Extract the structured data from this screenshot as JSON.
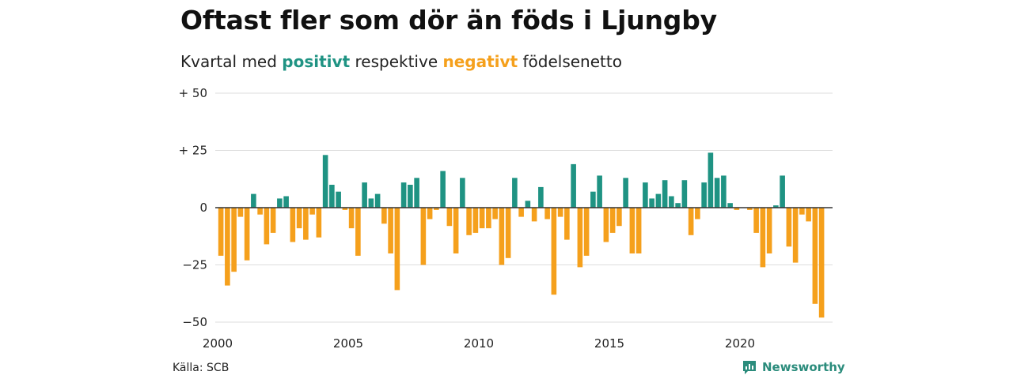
{
  "title": "Oftast fler som dör än föds i Ljungby",
  "subtitle": {
    "prefix": "Kvartal med",
    "positive_word": "positivt",
    "middle": "respektive",
    "negative_word": "negativt",
    "suffix": "födelsenetto"
  },
  "source": "Källa: SCB",
  "brand": "Newsworthy",
  "colors": {
    "positive": "#1f9383",
    "negative": "#f5a01c",
    "grid": "#dddddd",
    "axis": "#333333"
  },
  "chart_data": {
    "type": "bar",
    "start_year": 2000,
    "period": "quarter",
    "x_tick_labels": [
      "2000",
      "2005",
      "2010",
      "2015",
      "2020"
    ],
    "y_tick_labels": [
      "+ 50",
      "+ 25",
      "0",
      "−25",
      "−50"
    ],
    "y_ticks": [
      50,
      25,
      0,
      -25,
      -50
    ],
    "ylim": [
      -50,
      50
    ],
    "grid": true,
    "values": [
      -21,
      -34,
      -28,
      -4,
      -23,
      6,
      -3,
      -16,
      -11,
      4,
      5,
      -15,
      -9,
      -14,
      -3,
      -13,
      23,
      10,
      7,
      -1,
      -9,
      -21,
      11,
      4,
      6,
      -7,
      -20,
      -36,
      11,
      10,
      13,
      -25,
      -5,
      -1,
      16,
      -8,
      -20,
      13,
      -12,
      -11,
      -9,
      -9,
      -5,
      -25,
      -22,
      13,
      -4,
      3,
      -6,
      9,
      -5,
      -38,
      -4,
      -14,
      19,
      -26,
      -21,
      7,
      14,
      -15,
      -11,
      -8,
      13,
      -20,
      -20,
      11,
      4,
      6,
      12,
      5,
      2,
      12,
      -12,
      -5,
      11,
      24,
      13,
      14,
      2,
      -1,
      0,
      -1,
      -11,
      -26,
      -20,
      1,
      14,
      -17,
      -24,
      -3,
      -6,
      -42,
      -48
    ]
  }
}
